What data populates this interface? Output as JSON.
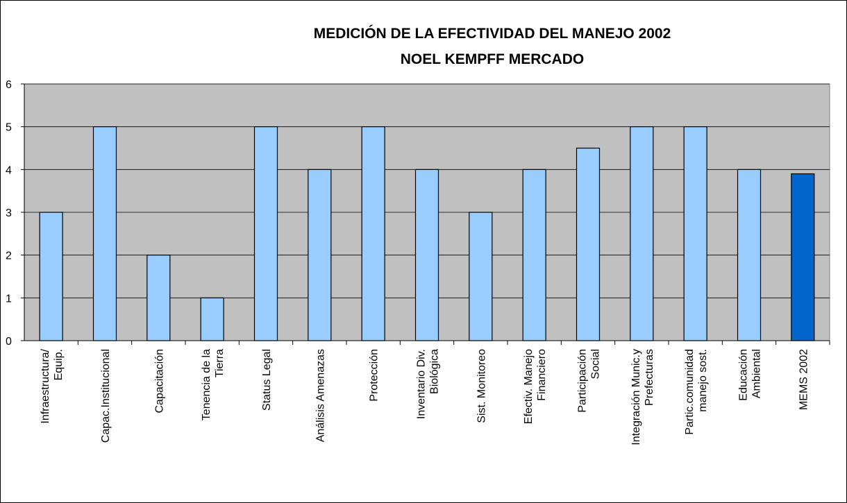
{
  "chart_data": {
    "type": "bar",
    "title": [
      "MEDICIÓN DE LA EFECTIVIDAD DEL MANEJO 2002",
      "NOEL KEMPFF MERCADO"
    ],
    "categories": [
      [
        "Infraestructura/",
        "Equip."
      ],
      [
        "Capac.Institucional"
      ],
      [
        "Capacitación"
      ],
      [
        "Tenencia de la",
        "Tierra"
      ],
      [
        "Status Legal"
      ],
      [
        "Análisis Amenazas"
      ],
      [
        "Protección"
      ],
      [
        "Inventario Div.",
        "Biológica"
      ],
      [
        "Sist. Monitoreo"
      ],
      [
        "Efectiv. Manejo",
        "Financiero"
      ],
      [
        "Participación",
        "Social"
      ],
      [
        "Integración Munic.y",
        "Prefecturas"
      ],
      [
        "Partic.comunidad",
        "manejo sost."
      ],
      [
        "Educación",
        "Ambiental"
      ],
      [
        "MEMS 2002"
      ]
    ],
    "values": [
      3,
      5,
      2,
      1,
      5,
      4,
      5,
      4,
      3,
      4,
      4.5,
      5,
      5,
      4,
      3.9
    ],
    "colors": [
      "#99ccff",
      "#99ccff",
      "#99ccff",
      "#99ccff",
      "#99ccff",
      "#99ccff",
      "#99ccff",
      "#99ccff",
      "#99ccff",
      "#99ccff",
      "#99ccff",
      "#99ccff",
      "#99ccff",
      "#99ccff",
      "#0066cc"
    ],
    "ylim": [
      0,
      6
    ],
    "yticks": [
      0,
      1,
      2,
      3,
      4,
      5,
      6
    ],
    "grid": true
  }
}
